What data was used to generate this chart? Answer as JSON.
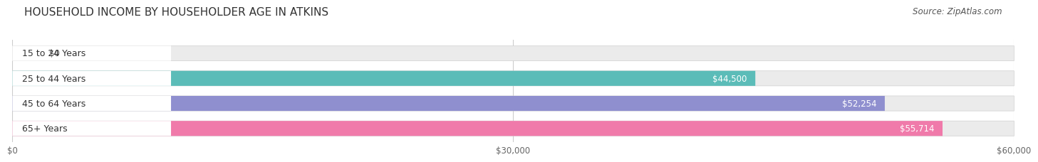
{
  "title": "HOUSEHOLD INCOME BY HOUSEHOLDER AGE IN ATKINS",
  "source": "Source: ZipAtlas.com",
  "categories": [
    "15 to 24 Years",
    "25 to 44 Years",
    "45 to 64 Years",
    "65+ Years"
  ],
  "values": [
    0,
    44500,
    52254,
    55714
  ],
  "value_labels": [
    "$0",
    "$44,500",
    "$52,254",
    "$55,714"
  ],
  "bar_colors": [
    "#c9a8d4",
    "#5bbcb8",
    "#8f8fcf",
    "#f07aaa"
  ],
  "bg_bar_color": "#ebebeb",
  "max_value": 60000,
  "xticks": [
    0,
    30000,
    60000
  ],
  "xtick_labels": [
    "$0",
    "$30,000",
    "$60,000"
  ],
  "background_color": "#ffffff",
  "bar_height": 0.6,
  "title_fontsize": 11,
  "source_fontsize": 8.5,
  "label_fontsize": 9,
  "value_fontsize": 8.5,
  "tick_fontsize": 8.5,
  "label_bg_color": "#ffffff",
  "rounding_size": 0.28
}
